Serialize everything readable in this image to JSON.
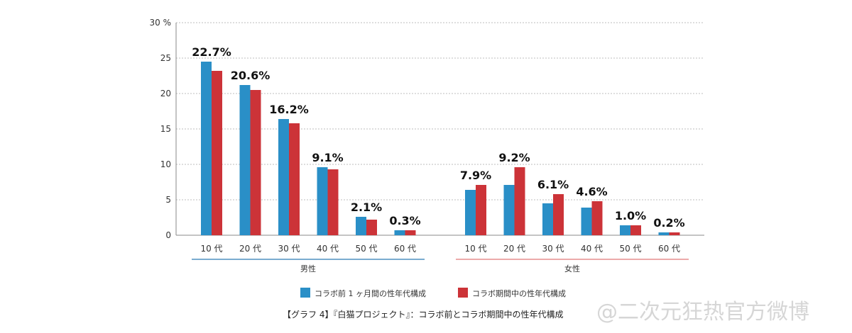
{
  "chart_data": {
    "type": "bar",
    "unit": "%",
    "ylim": [
      0,
      30
    ],
    "yticks": [
      0,
      5,
      10,
      15,
      20,
      25,
      30
    ],
    "ytick_labels": [
      "0",
      "5",
      "10",
      "15",
      "20",
      "25",
      "30 %"
    ],
    "grid": true,
    "groups": [
      {
        "name": "男性",
        "categories": [
          "10 代",
          "20 代",
          "30 代",
          "40 代",
          "50 代",
          "60 代"
        ],
        "series": [
          {
            "name": "コラボ前 1 ヶ月間の性年代構成",
            "values": [
              24.5,
              21.2,
              16.4,
              9.6,
              2.6,
              0.7
            ]
          },
          {
            "name": "コラボ期間中の性年代構成",
            "values": [
              23.2,
              20.5,
              15.8,
              9.3,
              2.2,
              0.7
            ]
          }
        ],
        "labels": [
          "22.7%",
          "20.6%",
          "16.2%",
          "9.1%",
          "2.1%",
          "0.3%"
        ]
      },
      {
        "name": "女性",
        "categories": [
          "10 代",
          "20 代",
          "30 代",
          "40 代",
          "50 代",
          "60 代"
        ],
        "series": [
          {
            "name": "コラボ前 1 ヶ月間の性年代構成",
            "values": [
              6.4,
              7.1,
              4.5,
              3.9,
              1.4,
              0.4
            ]
          },
          {
            "name": "コラボ期間中の性年代構成",
            "values": [
              7.1,
              9.6,
              5.8,
              4.8,
              1.4,
              0.4
            ]
          }
        ],
        "labels": [
          "7.9%",
          "9.2%",
          "6.1%",
          "4.6%",
          "1.0%",
          "0.2%"
        ]
      }
    ],
    "legend": [
      "コラボ前 1 ヶ月間の性年代構成",
      "コラボ期間中の性年代構成"
    ],
    "legend_position": "bottom",
    "colors": {
      "before": "#2a8fc7",
      "during": "#cc3338",
      "male_line": "#2a7ab5",
      "female_line": "#e07878",
      "grid": "#bdbdbd",
      "axis": "#888888"
    },
    "caption": "【グラフ 4】『白猫プロジェクト』：コラボ前とコラボ期間中の性年代構成"
  },
  "watermark": "@二次元狂热官方微博"
}
